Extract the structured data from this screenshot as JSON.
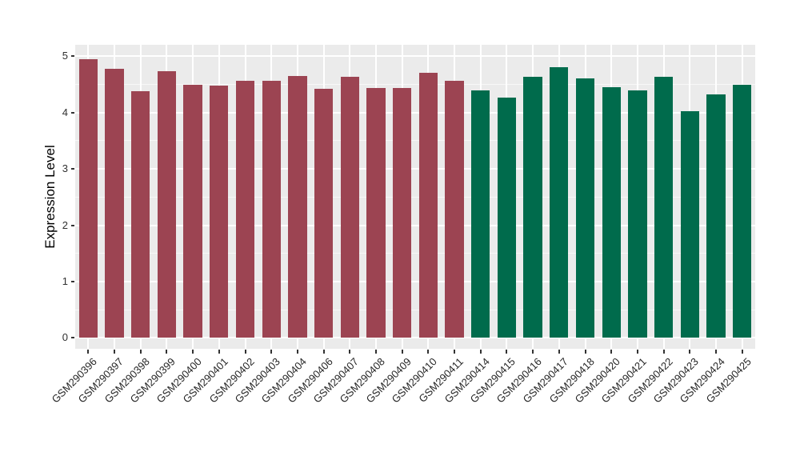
{
  "figure": {
    "background": "#FFFFFF",
    "panel_background": "#EBEBEB",
    "gridline_color": "#FFFFFF",
    "axis_text_color": "#303030",
    "axis_title_color": "#000000"
  },
  "chart_data": {
    "type": "bar",
    "title": "",
    "xlabel": "",
    "ylabel": "Expression Level",
    "ylim": [
      0,
      5.2
    ],
    "yticks": [
      0,
      1,
      2,
      3,
      4,
      5
    ],
    "minor_yticks": [
      0.5,
      1.5,
      2.5,
      3.5,
      4.5
    ],
    "grid": "major-and-minor, white on grey panel",
    "legend_position": "none",
    "x_label_rotation_deg": 45,
    "categories": [
      "GSM290396",
      "GSM290397",
      "GSM290398",
      "GSM290399",
      "GSM290400",
      "GSM290401",
      "GSM290402",
      "GSM290403",
      "GSM290404",
      "GSM290406",
      "GSM290407",
      "GSM290408",
      "GSM290409",
      "GSM290410",
      "GSM290411",
      "GSM290414",
      "GSM290415",
      "GSM290416",
      "GSM290417",
      "GSM290418",
      "GSM290420",
      "GSM290421",
      "GSM290422",
      "GSM290423",
      "GSM290424",
      "GSM290425"
    ],
    "values": [
      4.95,
      4.78,
      4.38,
      4.73,
      4.5,
      4.48,
      4.57,
      4.57,
      4.65,
      4.42,
      4.63,
      4.44,
      4.44,
      4.7,
      4.56,
      4.4,
      4.27,
      4.64,
      4.8,
      4.6,
      4.45,
      4.4,
      4.63,
      4.03,
      4.32,
      4.5
    ],
    "bar_groups": [
      "group1",
      "group1",
      "group1",
      "group1",
      "group1",
      "group1",
      "group1",
      "group1",
      "group1",
      "group1",
      "group1",
      "group1",
      "group1",
      "group1",
      "group1",
      "group2",
      "group2",
      "group2",
      "group2",
      "group2",
      "group2",
      "group2",
      "group2",
      "group2",
      "group2",
      "group2"
    ],
    "group_colors": {
      "group1": "#9C4452",
      "group2": "#006B4C"
    }
  }
}
